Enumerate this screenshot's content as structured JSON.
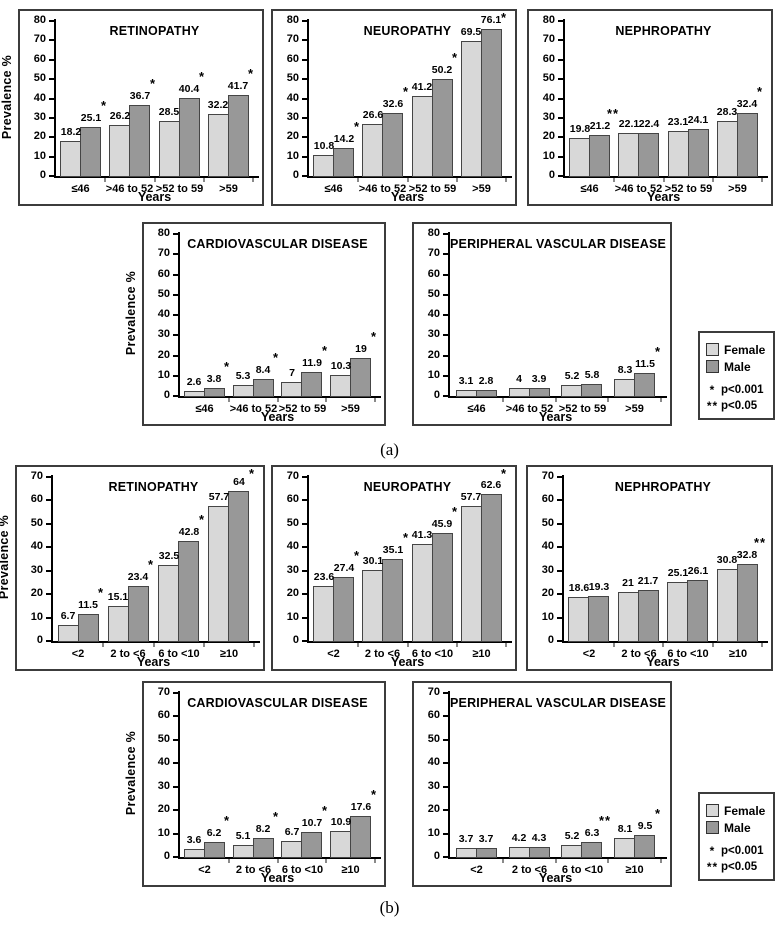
{
  "figure": {
    "panel_a_label": "(a)",
    "panel_b_label": "(b)"
  },
  "legend": {
    "items": [
      {
        "name": "Female"
      },
      {
        "name": "Male"
      }
    ],
    "notes": [
      {
        "marker": "*",
        "text": "p<0.001"
      },
      {
        "marker": "**",
        "text": "p<0.05"
      }
    ]
  },
  "colors": {
    "female_fill": "#d8d8d8",
    "male_fill": "#989898",
    "bar_border": "#454545",
    "box_border": "#3c3c3c",
    "axis": "#000000"
  },
  "chart_data": [
    {
      "panel": "a",
      "type": "bar",
      "title": "RETINOPATHY",
      "xlabel": "Years",
      "ylabel": "Prevalence %",
      "ylabel_visible": true,
      "ylim": [
        0,
        80
      ],
      "ytick_step": 10,
      "grid": false,
      "categories": [
        "≤46",
        ">46 to 52",
        ">52 to 59",
        ">59"
      ],
      "series": [
        {
          "name": "Female",
          "values": [
            18.2,
            26.2,
            28.5,
            32.2
          ],
          "labels": [
            "18.2",
            "26.2",
            "28.5",
            "32.2"
          ]
        },
        {
          "name": "Male",
          "values": [
            25.1,
            36.7,
            40.4,
            41.7
          ],
          "labels": [
            "25.1",
            "36.7",
            "40.4",
            "41.7"
          ]
        }
      ],
      "significance": [
        "*",
        "*",
        "*",
        "*"
      ]
    },
    {
      "panel": "a",
      "type": "bar",
      "title": "NEUROPATHY",
      "xlabel": "Years",
      "ylabel": "Prevalence %",
      "ylabel_visible": false,
      "ylim": [
        0,
        80
      ],
      "ytick_step": 10,
      "grid": false,
      "categories": [
        "≤46",
        ">46 to 52",
        ">52 to 59",
        ">59"
      ],
      "series": [
        {
          "name": "Female",
          "values": [
            10.8,
            26.6,
            41.2,
            69.5
          ],
          "labels": [
            "10.8",
            "26.6",
            "41.2",
            "69.5"
          ]
        },
        {
          "name": "Male",
          "values": [
            14.2,
            32.6,
            50.2,
            76.1
          ],
          "labels": [
            "14.2",
            "32.6",
            "50.2",
            "76.1"
          ]
        }
      ],
      "significance": [
        "*",
        "*",
        "*",
        "*"
      ]
    },
    {
      "panel": "a",
      "type": "bar",
      "title": "NEPHROPATHY",
      "xlabel": "Years",
      "ylabel": "Prevalence %",
      "ylabel_visible": false,
      "ylim": [
        0,
        80
      ],
      "ytick_step": 10,
      "grid": false,
      "categories": [
        "≤46",
        ">46 to 52",
        ">52 to 59",
        ">59"
      ],
      "series": [
        {
          "name": "Female",
          "values": [
            19.8,
            22.1,
            23.1,
            28.3
          ],
          "labels": [
            "19.8",
            "22.1",
            "23.1",
            "28.3"
          ]
        },
        {
          "name": "Male",
          "values": [
            21.2,
            22.4,
            24.1,
            32.4
          ],
          "labels": [
            "21.2",
            "22.4",
            "24.1",
            "32.4"
          ]
        }
      ],
      "significance": [
        "**",
        "",
        "",
        "*"
      ]
    },
    {
      "panel": "a",
      "type": "bar",
      "title": "CARDIOVASCULAR DISEASE",
      "xlabel": "Years",
      "ylabel": "Prevalence %",
      "ylabel_visible": true,
      "ylim": [
        0,
        80
      ],
      "ytick_step": 10,
      "grid": false,
      "categories": [
        "≤46",
        ">46 to 52",
        ">52 to 59",
        ">59"
      ],
      "series": [
        {
          "name": "Female",
          "values": [
            2.6,
            5.3,
            7,
            10.3
          ],
          "labels": [
            "2.6",
            "5.3",
            "7",
            "10.3"
          ]
        },
        {
          "name": "Male",
          "values": [
            3.8,
            8.4,
            11.9,
            19
          ],
          "labels": [
            "3.8",
            "8.4",
            "11.9",
            "19"
          ]
        }
      ],
      "significance": [
        "*",
        "*",
        "*",
        "*"
      ]
    },
    {
      "panel": "a",
      "type": "bar",
      "title": "PERIPHERAL VASCULAR DISEASE",
      "xlabel": "Years",
      "ylabel": "Prevalence %",
      "ylabel_visible": false,
      "ylim": [
        0,
        80
      ],
      "ytick_step": 10,
      "grid": false,
      "categories": [
        "≤46",
        ">46 to 52",
        ">52 to 59",
        ">59"
      ],
      "series": [
        {
          "name": "Female",
          "values": [
            3.1,
            4,
            5.2,
            8.3
          ],
          "labels": [
            "3.1",
            "4",
            "5.2",
            "8.3"
          ]
        },
        {
          "name": "Male",
          "values": [
            2.8,
            3.9,
            5.8,
            11.5
          ],
          "labels": [
            "2.8",
            "3.9",
            "5.8",
            "11.5"
          ]
        }
      ],
      "significance": [
        "",
        "",
        "",
        "*"
      ]
    },
    {
      "panel": "b",
      "type": "bar",
      "title": "RETINOPATHY",
      "xlabel": "Years",
      "ylabel": "Prevalence %",
      "ylabel_visible": true,
      "ylim": [
        0,
        70
      ],
      "ytick_step": 10,
      "grid": false,
      "categories": [
        "<2",
        "2 to <6",
        "6 to <10",
        "≥10"
      ],
      "series": [
        {
          "name": "Female",
          "values": [
            6.7,
            15.1,
            32.5,
            57.7
          ],
          "labels": [
            "6.7",
            "15.1",
            "32.5",
            "57.7"
          ]
        },
        {
          "name": "Male",
          "values": [
            11.5,
            23.4,
            42.8,
            64
          ],
          "labels": [
            "11.5",
            "23.4",
            "42.8",
            "64"
          ]
        }
      ],
      "significance": [
        "*",
        "*",
        "*",
        "*"
      ]
    },
    {
      "panel": "b",
      "type": "bar",
      "title": "NEUROPATHY",
      "xlabel": "Years",
      "ylabel": "Prevalence %",
      "ylabel_visible": false,
      "ylim": [
        0,
        70
      ],
      "ytick_step": 10,
      "grid": false,
      "categories": [
        "<2",
        "2 to <6",
        "6 to <10",
        "≥10"
      ],
      "series": [
        {
          "name": "Female",
          "values": [
            23.6,
            30.1,
            41.3,
            57.7
          ],
          "labels": [
            "23.6",
            "30.1",
            "41.3",
            "57.7"
          ]
        },
        {
          "name": "Male",
          "values": [
            27.4,
            35.1,
            45.9,
            62.6
          ],
          "labels": [
            "27.4",
            "35.1",
            "45.9",
            "62.6"
          ]
        }
      ],
      "significance": [
        "*",
        "*",
        "*",
        "*"
      ]
    },
    {
      "panel": "b",
      "type": "bar",
      "title": "NEPHROPATHY",
      "xlabel": "Years",
      "ylabel": "Prevalence %",
      "ylabel_visible": false,
      "ylim": [
        0,
        70
      ],
      "ytick_step": 10,
      "grid": false,
      "categories": [
        "<2",
        "2 to <6",
        "6 to <10",
        "≥10"
      ],
      "series": [
        {
          "name": "Female",
          "values": [
            18.6,
            21,
            25.1,
            30.8
          ],
          "labels": [
            "18.6",
            "21",
            "25.1",
            "30.8"
          ]
        },
        {
          "name": "Male",
          "values": [
            19.3,
            21.7,
            26.1,
            32.8
          ],
          "labels": [
            "19.3",
            "21.7",
            "26.1",
            "32.8"
          ]
        }
      ],
      "significance": [
        "",
        "",
        "",
        "**"
      ]
    },
    {
      "panel": "b",
      "type": "bar",
      "title": "CARDIOVASCULAR DISEASE",
      "xlabel": "Years",
      "ylabel": "Prevalence %",
      "ylabel_visible": true,
      "ylim": [
        0,
        70
      ],
      "ytick_step": 10,
      "grid": false,
      "categories": [
        "<2",
        "2 to <6",
        "6 to <10",
        "≥10"
      ],
      "series": [
        {
          "name": "Female",
          "values": [
            3.6,
            5.1,
            6.7,
            10.9
          ],
          "labels": [
            "3.6",
            "5.1",
            "6.7",
            "10.9"
          ]
        },
        {
          "name": "Male",
          "values": [
            6.2,
            8.2,
            10.7,
            17.6
          ],
          "labels": [
            "6.2",
            "8.2",
            "10.7",
            "17.6"
          ]
        }
      ],
      "significance": [
        "*",
        "*",
        "*",
        "*"
      ]
    },
    {
      "panel": "b",
      "type": "bar",
      "title": "PERIPHERAL VASCULAR DISEASE",
      "xlabel": "Years",
      "ylabel": "Prevalence %",
      "ylabel_visible": false,
      "ylim": [
        0,
        70
      ],
      "ytick_step": 10,
      "grid": false,
      "categories": [
        "<2",
        "2 to <6",
        "6 to <10",
        "≥10"
      ],
      "series": [
        {
          "name": "Female",
          "values": [
            3.7,
            4.2,
            5.2,
            8.1
          ],
          "labels": [
            "3.7",
            "4.2",
            "5.2",
            "8.1"
          ]
        },
        {
          "name": "Male",
          "values": [
            3.7,
            4.3,
            6.3,
            9.5
          ],
          "labels": [
            "3.7",
            "4.3",
            "6.3",
            "9.5"
          ]
        }
      ],
      "significance": [
        "",
        "",
        "**",
        "*"
      ]
    }
  ]
}
